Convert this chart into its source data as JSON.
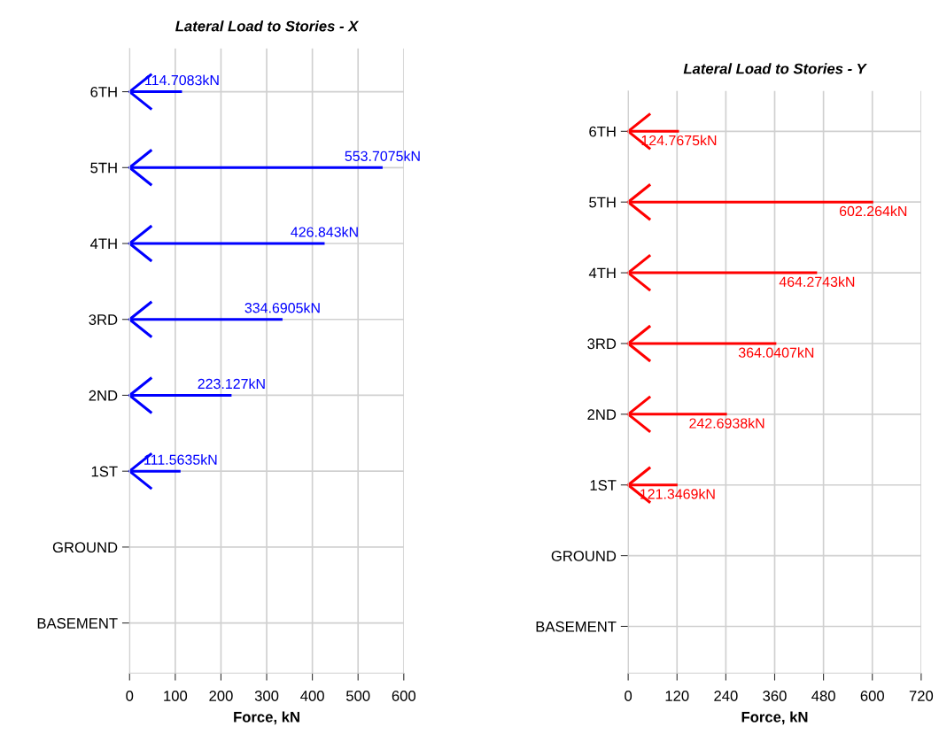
{
  "chart_data": [
    {
      "type": "bar",
      "orientation": "horizontal",
      "title": "Lateral Load to Stories - X",
      "xlabel": "Force, kN",
      "categories": [
        "6TH",
        "5TH",
        "4TH",
        "3RD",
        "2ND",
        "1ST",
        "GROUND",
        "BASEMENT"
      ],
      "series": [
        {
          "color": "#0000ff",
          "values": [
            114.7083,
            553.7075,
            426.843,
            334.6905,
            223.127,
            111.5635,
            null,
            null
          ],
          "value_labels": [
            "114.7083kN",
            "553.7075kN",
            "426.843kN",
            "334.6905kN",
            "223.127kN",
            "111.5635kN",
            null,
            null
          ]
        }
      ],
      "xlim": [
        0,
        600
      ],
      "xticks": [
        0,
        100,
        200,
        300,
        400,
        500,
        600
      ],
      "grid": true
    },
    {
      "type": "bar",
      "orientation": "horizontal",
      "title": "Lateral Load to Stories - Y",
      "xlabel": "Force, kN",
      "categories": [
        "6TH",
        "5TH",
        "4TH",
        "3RD",
        "2ND",
        "1ST",
        "GROUND",
        "BASEMENT"
      ],
      "series": [
        {
          "color": "#ff0000",
          "values": [
            124.7675,
            602.264,
            464.2743,
            364.0407,
            242.6938,
            121.3469,
            null,
            null
          ],
          "value_labels": [
            "124.7675kN",
            "602.264kN",
            "464.2743kN",
            "364.0407kN",
            "242.6938kN",
            "121.3469kN",
            null,
            null
          ]
        }
      ],
      "xlim": [
        0,
        720
      ],
      "xticks": [
        0,
        120,
        240,
        360,
        480,
        600,
        720
      ],
      "grid": true
    }
  ]
}
